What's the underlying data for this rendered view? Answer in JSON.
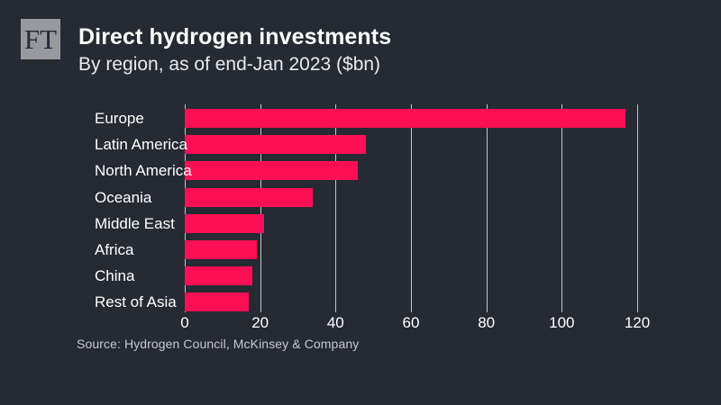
{
  "logo": {
    "text": "FT"
  },
  "header": {
    "title": "Direct hydrogen investments",
    "subtitle": "By region, as of end-Jan 2023 ($bn)"
  },
  "source": "Source: Hydrogen Council, McKinsey & Company",
  "colors": {
    "background": "#262a33",
    "bar": "#fc0f55",
    "gridline": "#c2c6cc",
    "text": "#ffffff",
    "subtitle_text": "#e8eaec",
    "source_text": "#c5c8ce",
    "logo_background": "#98999e"
  },
  "chart_data": {
    "type": "bar",
    "orientation": "horizontal",
    "title": "Direct hydrogen investments",
    "subtitle": "By region, as of end-Jan 2023 ($bn)",
    "categories": [
      "Europe",
      "Latin America",
      "North America",
      "Oceania",
      "Middle East",
      "Africa",
      "China",
      "Rest of Asia"
    ],
    "values": [
      117,
      48,
      46,
      34,
      21,
      19,
      18,
      17
    ],
    "xlabel": "",
    "ylabel": "",
    "xlim": [
      0,
      120
    ],
    "xticks": [
      0,
      20,
      40,
      60,
      80,
      100,
      120
    ],
    "grid": true,
    "legend": false,
    "unit": "$bn"
  }
}
